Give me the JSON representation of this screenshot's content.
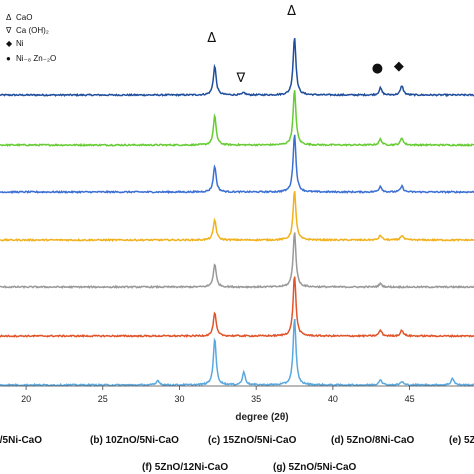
{
  "chart_data": {
    "type": "line",
    "title": "",
    "xlabel": "degree (2θ)",
    "ylabel": "",
    "xlim": [
      18.3,
      49.2
    ],
    "xticks": [
      20,
      25,
      30,
      35,
      40,
      45
    ],
    "grid": false,
    "legend": {
      "position": "top-left",
      "entries": [
        {
          "symbol": "Δ",
          "label": "CaO"
        },
        {
          "symbol": "∇",
          "label": "Ca (OH)₂"
        },
        {
          "symbol": "◆",
          "label": "Ni"
        },
        {
          "symbol": "●",
          "label": "Ni₋₈ Zn₋₂O"
        }
      ]
    },
    "annotations": [
      {
        "symbol": "Δ",
        "x": 32.3
      },
      {
        "symbol": "∇",
        "x": 34.2
      },
      {
        "symbol": "Δ",
        "x": 37.5
      },
      {
        "symbol": "●",
        "x": 43.1
      },
      {
        "symbol": "◆",
        "x": 44.5
      }
    ],
    "series": [
      {
        "color": "#1f4e9c",
        "peaks": [
          [
            32.3,
            0.5
          ],
          [
            34.2,
            0.04
          ],
          [
            37.5,
            1.0
          ],
          [
            43.1,
            0.12
          ],
          [
            44.5,
            0.16
          ]
        ]
      },
      {
        "color": "#66cc33",
        "peaks": [
          [
            32.3,
            0.5
          ],
          [
            37.5,
            0.95
          ],
          [
            43.1,
            0.1
          ],
          [
            44.5,
            0.12
          ]
        ]
      },
      {
        "color": "#3b6fd4",
        "peaks": [
          [
            32.3,
            0.45
          ],
          [
            37.5,
            1.0
          ],
          [
            43.1,
            0.1
          ],
          [
            44.5,
            0.1
          ]
        ]
      },
      {
        "color": "#f0b21e",
        "peaks": [
          [
            32.3,
            0.35
          ],
          [
            37.5,
            0.85
          ],
          [
            43.1,
            0.08
          ],
          [
            44.5,
            0.08
          ]
        ]
      },
      {
        "color": "#999999",
        "peaks": [
          [
            32.3,
            0.4
          ],
          [
            37.5,
            0.95
          ],
          [
            43.1,
            0.06
          ]
        ]
      },
      {
        "color": "#e0552a",
        "peaks": [
          [
            32.3,
            0.4
          ],
          [
            37.5,
            1.05
          ],
          [
            43.1,
            0.1
          ],
          [
            44.5,
            0.1
          ]
        ]
      },
      {
        "color": "#5aa8e0",
        "peaks": [
          [
            28.6,
            0.08
          ],
          [
            32.3,
            0.8
          ],
          [
            34.2,
            0.22
          ],
          [
            37.5,
            1.15
          ],
          [
            43.1,
            0.1
          ],
          [
            44.5,
            0.06
          ],
          [
            47.8,
            0.12
          ]
        ]
      }
    ]
  },
  "captions": {
    "row1": [
      "O/5Ni-CaO",
      "(b) 10ZnO/5Ni-CaO",
      "(c) 15ZnO/5Ni-CaO",
      "(d) 5ZnO/8Ni-CaO",
      "(e) 5Z"
    ],
    "row2": [
      "(f) 5ZnO/12Ni-CaO",
      "(g) 5ZnO/5Ni-CaO"
    ]
  }
}
